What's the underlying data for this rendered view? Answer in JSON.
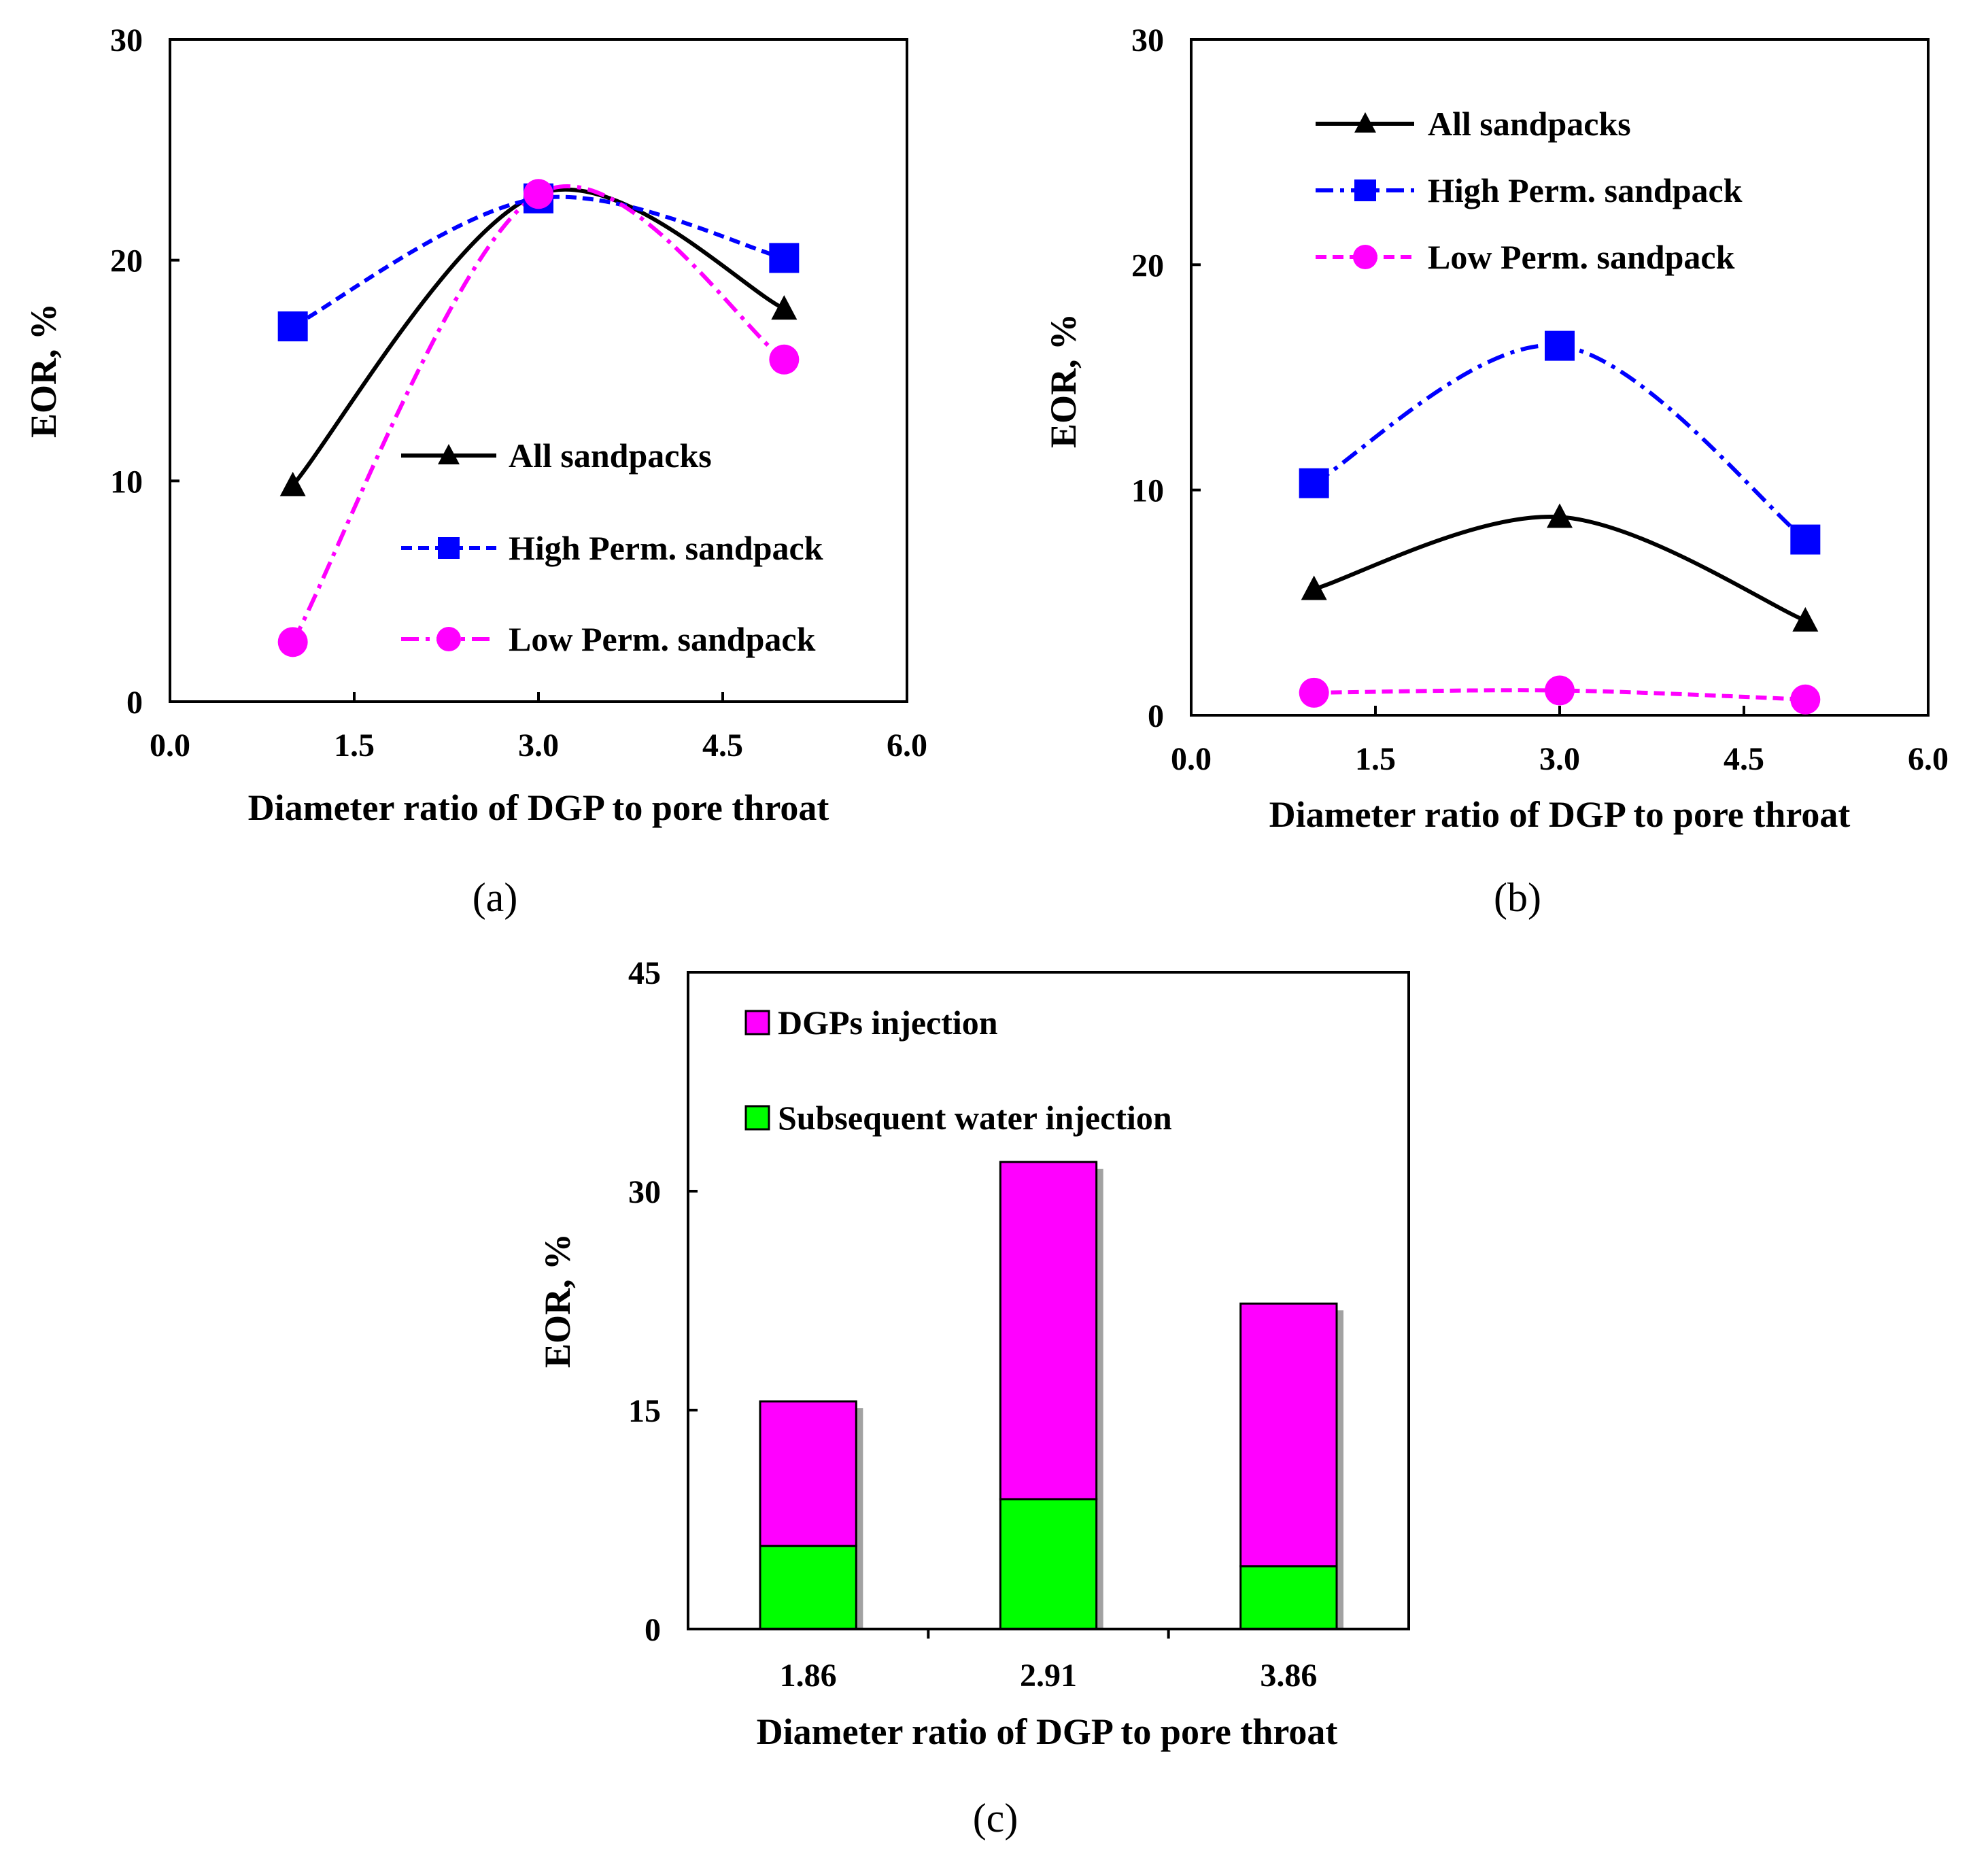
{
  "chart_data": [
    {
      "type": "line",
      "panel_label": "(a)",
      "xlabel": "Diameter ratio  of DGP to pore  throat",
      "ylabel": "EOR, %",
      "xlim": [
        0,
        6
      ],
      "ylim": [
        0,
        30
      ],
      "xticks": [
        "0.0",
        "1.5",
        "3.0",
        "4.5",
        "6.0"
      ],
      "yticks": [
        "0",
        "10",
        "20",
        "30"
      ],
      "legend_position": "center-right",
      "series": [
        {
          "name": "All sandpacks",
          "x": [
            1,
            3,
            5
          ],
          "values": [
            9.8,
            23.0,
            17.8
          ],
          "color": "#000000",
          "marker": "triangle",
          "dash": "solid"
        },
        {
          "name": "High Perm. sandpack",
          "x": [
            1,
            3,
            5
          ],
          "values": [
            17.0,
            22.8,
            20.1
          ],
          "color": "#0000ff",
          "marker": "square",
          "dash": "dashed"
        },
        {
          "name": "Low Perm. sandpack",
          "x": [
            1,
            3,
            5
          ],
          "values": [
            2.7,
            23.0,
            15.5
          ],
          "color": "#ff00ff",
          "marker": "circle",
          "dash": "dashdot"
        }
      ]
    },
    {
      "type": "line",
      "panel_label": "(b)",
      "xlabel": "Diameter ratio  of DGP to pore  throat",
      "ylabel": "EOR, %",
      "xlim": [
        0,
        6
      ],
      "ylim": [
        0,
        30
      ],
      "xticks": [
        "0.0",
        "1.5",
        "3.0",
        "4.5",
        "6.0"
      ],
      "yticks": [
        "0",
        "10",
        "20",
        "30"
      ],
      "legend_position": "top-left",
      "series": [
        {
          "name": "All sandpacks",
          "x": [
            1,
            3,
            5
          ],
          "values": [
            5.6,
            8.8,
            4.2
          ],
          "color": "#000000",
          "marker": "triangle",
          "dash": "solid"
        },
        {
          "name": "High Perm. sandpack",
          "x": [
            1,
            3,
            5
          ],
          "values": [
            10.3,
            16.4,
            7.8
          ],
          "color": "#0000ff",
          "marker": "square",
          "dash": "dashdot"
        },
        {
          "name": "Low Perm. sandpack",
          "x": [
            1,
            3,
            5
          ],
          "values": [
            1.0,
            1.1,
            0.7
          ],
          "color": "#ff00ff",
          "marker": "circle",
          "dash": "dashed"
        }
      ]
    },
    {
      "type": "bar",
      "stacked": true,
      "panel_label": "(c)",
      "xlabel": "Diameter ratio  of DGP to pore  throat",
      "ylabel": "EOR, %",
      "ylim": [
        0,
        45
      ],
      "yticks": [
        "0",
        "15",
        "30",
        "45"
      ],
      "categories": [
        "1.86",
        "2.91",
        "3.86"
      ],
      "legend_position": "top-left",
      "series": [
        {
          "name": "Subsequent water injection",
          "values": [
            5.7,
            8.9,
            4.3
          ],
          "color": "#00ff00"
        },
        {
          "name": "DGPs injection",
          "values": [
            9.9,
            23.1,
            18.0
          ],
          "color": "#ff00ff"
        }
      ]
    }
  ]
}
